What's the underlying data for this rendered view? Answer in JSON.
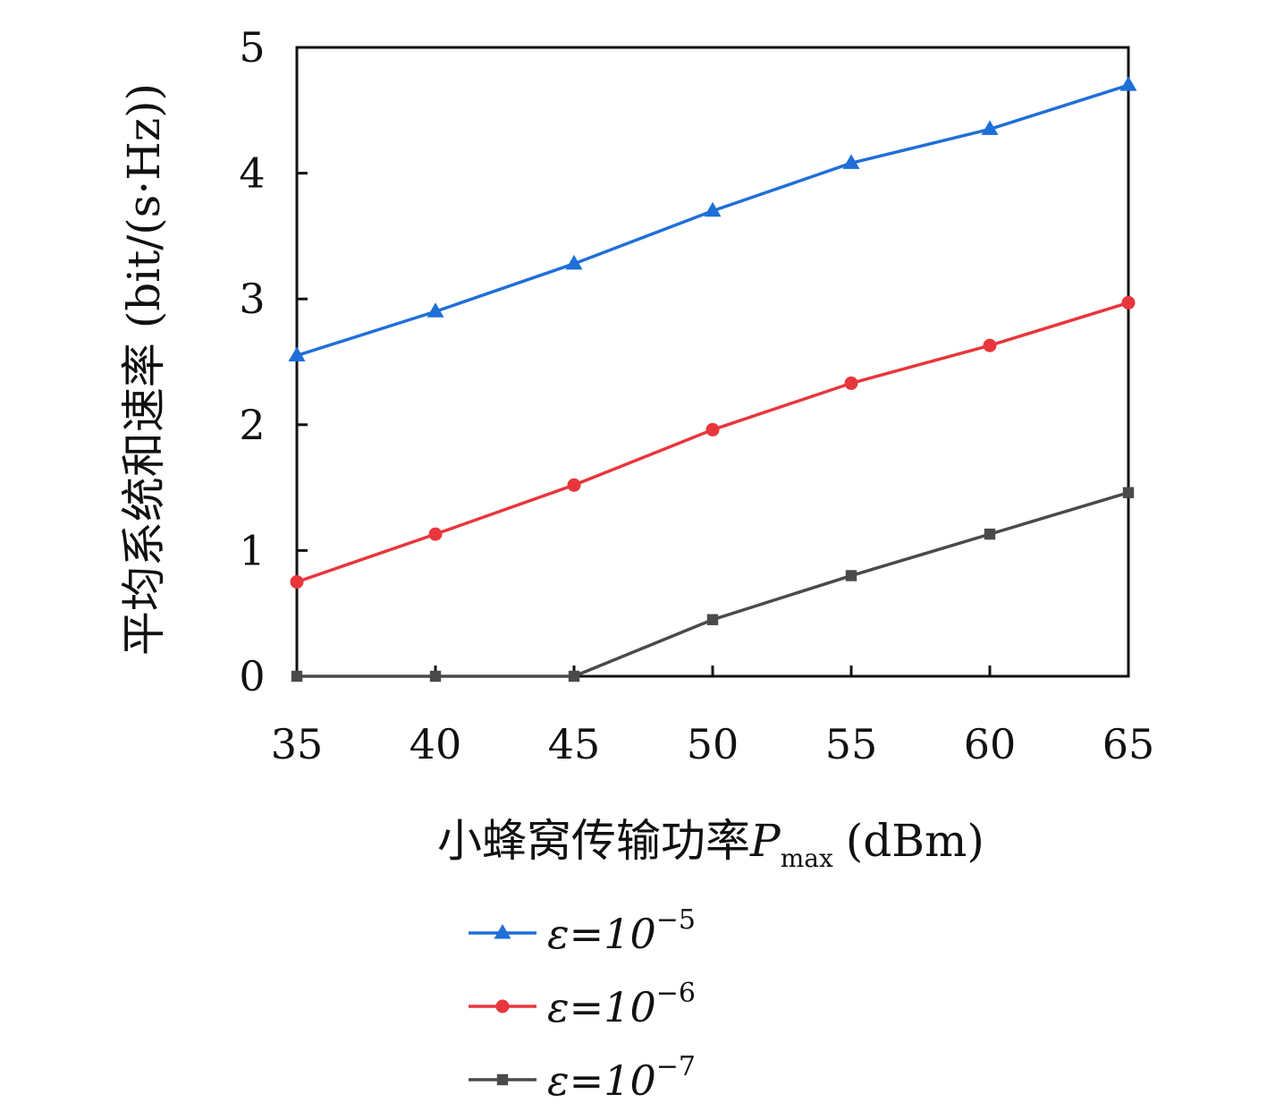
{
  "chart_data": {
    "type": "line",
    "xlabel_main": "小蜂窝传输功率",
    "xlabel_symbol": "P",
    "xlabel_sub": "max",
    "xlabel_unit": "(dBm)",
    "ylabel": "平均系统和速率 (bit/(s·Hz))",
    "x": [
      35,
      40,
      45,
      50,
      55,
      60,
      65
    ],
    "xlim": [
      35,
      65
    ],
    "ylim": [
      0,
      5
    ],
    "xticks": [
      "35",
      "40",
      "45",
      "50",
      "55",
      "60",
      "65"
    ],
    "yticks": [
      "0",
      "1",
      "2",
      "3",
      "4",
      "5"
    ],
    "grid": false,
    "legend_position": "bottom",
    "series": [
      {
        "name_prefix": "ε=10",
        "name_exp": "−5",
        "color": "#1f6fd8",
        "marker": "triangle",
        "values": [
          2.55,
          2.9,
          3.28,
          3.7,
          4.08,
          4.35,
          4.7
        ]
      },
      {
        "name_prefix": "ε=10",
        "name_exp": "−6",
        "color": "#e8363c",
        "marker": "circle",
        "values": [
          0.75,
          1.13,
          1.52,
          1.96,
          2.33,
          2.63,
          2.97
        ]
      },
      {
        "name_prefix": "ε=10",
        "name_exp": "−7",
        "color": "#4a4a4a",
        "marker": "square",
        "values": [
          0,
          0,
          0,
          0.45,
          0.8,
          1.13,
          1.46
        ]
      }
    ]
  }
}
